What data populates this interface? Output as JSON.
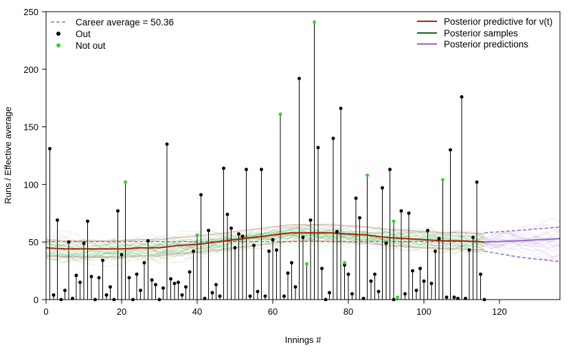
{
  "chart_data": {
    "type": "scatter",
    "xlabel": "Innings #",
    "ylabel": "Runs / Effective average",
    "xlim": [
      0,
      136
    ],
    "ylim": [
      0,
      250
    ],
    "x_ticks": [
      "0",
      "20",
      "40",
      "60",
      "80",
      "100",
      "120"
    ],
    "y_ticks": [
      "0",
      "50",
      "100",
      "150",
      "200",
      "250"
    ],
    "career_average": 50.36,
    "legend_left": [
      {
        "label": "Career average = 50.36",
        "style": "dashed-line",
        "color": "#5566aa"
      },
      {
        "label": "Out",
        "style": "point",
        "color": "#000000"
      },
      {
        "label": "Not out",
        "style": "point",
        "color": "#22dd22"
      }
    ],
    "legend_right": [
      {
        "label": "Posterior predictive for ν(t)",
        "style": "line",
        "color": "#aa2200"
      },
      {
        "label": "Posterior samples",
        "style": "line",
        "color": "#116611"
      },
      {
        "label": "Posterior predictions",
        "style": "line",
        "color": "#9966cc"
      }
    ],
    "colors": {
      "out": "#000000",
      "not_out": "#22dd22",
      "mean": "#aa2200",
      "band": "#e08080",
      "samples": "#2a9a2a",
      "predictions": "#9966cc",
      "average": "#5566aa"
    },
    "innings_out": [
      [
        1,
        131
      ],
      [
        2,
        4
      ],
      [
        3,
        69
      ],
      [
        4,
        0
      ],
      [
        5,
        8
      ],
      [
        6,
        50
      ],
      [
        7,
        1
      ],
      [
        8,
        21
      ],
      [
        9,
        15
      ],
      [
        10,
        49
      ],
      [
        11,
        68
      ],
      [
        12,
        20
      ],
      [
        13,
        0
      ],
      [
        14,
        19
      ],
      [
        15,
        34
      ],
      [
        16,
        4
      ],
      [
        17,
        11
      ],
      [
        18,
        0
      ],
      [
        19,
        77
      ],
      [
        20,
        39
      ],
      [
        22,
        19
      ],
      [
        23,
        0
      ],
      [
        24,
        22
      ],
      [
        25,
        8
      ],
      [
        26,
        32
      ],
      [
        27,
        51
      ],
      [
        28,
        17
      ],
      [
        29,
        13
      ],
      [
        30,
        0
      ],
      [
        31,
        10
      ],
      [
        32,
        135
      ],
      [
        33,
        18
      ],
      [
        34,
        14
      ],
      [
        35,
        15
      ],
      [
        36,
        4
      ],
      [
        37,
        11
      ],
      [
        38,
        24
      ],
      [
        39,
        42
      ],
      [
        41,
        91
      ],
      [
        42,
        1
      ],
      [
        43,
        60
      ],
      [
        44,
        6
      ],
      [
        45,
        13
      ],
      [
        46,
        3
      ],
      [
        47,
        114
      ],
      [
        48,
        74
      ],
      [
        49,
        62
      ],
      [
        50,
        45
      ],
      [
        51,
        57
      ],
      [
        52,
        55
      ],
      [
        53,
        113
      ],
      [
        54,
        3
      ],
      [
        55,
        47
      ],
      [
        56,
        7
      ],
      [
        57,
        113
      ],
      [
        58,
        3
      ],
      [
        59,
        42
      ],
      [
        60,
        52
      ],
      [
        61,
        43
      ],
      [
        63,
        3
      ],
      [
        64,
        23
      ],
      [
        65,
        32
      ],
      [
        66,
        11
      ],
      [
        67,
        192
      ],
      [
        68,
        54
      ],
      [
        70,
        69
      ],
      [
        72,
        132
      ],
      [
        73,
        27
      ],
      [
        74,
        0
      ],
      [
        75,
        6
      ],
      [
        76,
        140
      ],
      [
        77,
        59
      ],
      [
        78,
        166
      ],
      [
        79,
        30
      ],
      [
        80,
        22
      ],
      [
        81,
        5
      ],
      [
        82,
        88
      ],
      [
        83,
        71
      ],
      [
        84,
        1
      ],
      [
        86,
        16
      ],
      [
        87,
        22
      ],
      [
        88,
        7
      ],
      [
        89,
        97
      ],
      [
        90,
        49
      ],
      [
        91,
        113
      ],
      [
        92,
        0
      ],
      [
        94,
        77
      ],
      [
        95,
        5
      ],
      [
        96,
        75
      ],
      [
        97,
        25
      ],
      [
        98,
        8
      ],
      [
        99,
        27
      ],
      [
        100,
        16
      ],
      [
        101,
        60
      ],
      [
        102,
        14
      ],
      [
        103,
        42
      ],
      [
        104,
        53
      ],
      [
        106,
        2
      ],
      [
        107,
        130
      ],
      [
        108,
        2
      ],
      [
        109,
        1
      ],
      [
        110,
        176
      ],
      [
        111,
        1
      ],
      [
        112,
        43
      ],
      [
        113,
        54
      ],
      [
        114,
        102
      ],
      [
        115,
        22
      ],
      [
        116,
        0
      ]
    ],
    "innings_not_out": [
      [
        21,
        102
      ],
      [
        40,
        56
      ],
      [
        62,
        161
      ],
      [
        69,
        31
      ],
      [
        71,
        241
      ],
      [
        79,
        32
      ],
      [
        85,
        108
      ],
      [
        92,
        68
      ],
      [
        93,
        2
      ],
      [
        105,
        104
      ]
    ],
    "posterior_mean": [
      [
        0,
        45
      ],
      [
        5,
        44
      ],
      [
        10,
        44
      ],
      [
        15,
        44
      ],
      [
        20,
        44
      ],
      [
        25,
        45
      ],
      [
        30,
        45
      ],
      [
        35,
        47
      ],
      [
        40,
        48
      ],
      [
        45,
        50
      ],
      [
        50,
        52
      ],
      [
        55,
        54
      ],
      [
        60,
        56
      ],
      [
        65,
        58
      ],
      [
        70,
        58
      ],
      [
        75,
        58
      ],
      [
        80,
        57
      ],
      [
        85,
        56
      ],
      [
        90,
        54
      ],
      [
        95,
        53
      ],
      [
        100,
        52
      ],
      [
        105,
        51
      ],
      [
        110,
        51
      ],
      [
        116,
        50
      ]
    ],
    "prediction_mean": [
      [
        116,
        50
      ],
      [
        125,
        51
      ],
      [
        136,
        53
      ]
    ],
    "prediction_upper": [
      [
        116,
        58
      ],
      [
        125,
        60
      ],
      [
        136,
        63
      ]
    ],
    "prediction_lower": [
      [
        116,
        42
      ],
      [
        125,
        37
      ],
      [
        136,
        33
      ]
    ]
  }
}
